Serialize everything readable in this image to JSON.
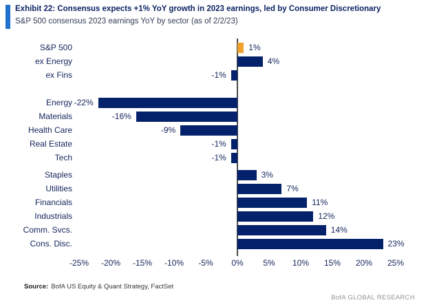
{
  "header": {
    "exhibit_title": "Exhibit 22: Consensus expects +1% YoY growth in 2023 earnings, led by Consumer Discretionary",
    "subtitle": "S&P 500 consensus 2023 earnings YoY by sector (as of 2/2/23)"
  },
  "colors": {
    "bar-navy": "#04216b",
    "bar-gold": "#efa32d",
    "accent-strip": "#2170cc",
    "title-navy": "#0d2464",
    "subtitle-slate": "#303c55",
    "label-navy": "#14245c",
    "axis-gray": "#4a4a4a",
    "source-dark": "#1a1a1a",
    "brand-gray": "#8f949b"
  },
  "chart_data": {
    "type": "bar",
    "orientation": "horizontal",
    "unit": "%",
    "title": "S&P 500 consensus 2023 earnings YoY by sector (as of 2/2/23)",
    "xlabel": "",
    "ylabel": "",
    "xlim": [
      -25,
      25
    ],
    "x_tick_step": 5,
    "x_ticks": [
      "-25%",
      "-20%",
      "-15%",
      "-10%",
      "-5%",
      "0%",
      "5%",
      "10%",
      "15%",
      "20%",
      "25%"
    ],
    "grid": false,
    "legend": false,
    "groups": [
      {
        "name": "aggregate",
        "rows": [
          {
            "label": "S&P 500",
            "value": 1,
            "value_label": "1%",
            "highlight": true
          },
          {
            "label": "ex Energy",
            "value": 4,
            "value_label": "4%",
            "highlight": false
          },
          {
            "label": "ex Fins",
            "value": -1,
            "value_label": "-1%",
            "highlight": false
          }
        ]
      },
      {
        "name": "negative-sectors",
        "rows": [
          {
            "label": "Energy",
            "value": -22,
            "value_label": "-22%",
            "highlight": false
          },
          {
            "label": "Materials",
            "value": -16,
            "value_label": "-16%",
            "highlight": false
          },
          {
            "label": "Health Care",
            "value": -9,
            "value_label": "-9%",
            "highlight": false
          },
          {
            "label": "Real Estate",
            "value": -1,
            "value_label": "-1%",
            "highlight": false
          },
          {
            "label": "Tech",
            "value": -1,
            "value_label": "-1%",
            "highlight": false
          }
        ]
      },
      {
        "name": "positive-sectors",
        "rows": [
          {
            "label": "Staples",
            "value": 3,
            "value_label": "3%",
            "highlight": false
          },
          {
            "label": "Utilities",
            "value": 7,
            "value_label": "7%",
            "highlight": false
          },
          {
            "label": "Financials",
            "value": 11,
            "value_label": "11%",
            "highlight": false
          },
          {
            "label": "Industrials",
            "value": 12,
            "value_label": "12%",
            "highlight": false
          },
          {
            "label": "Comm. Svcs.",
            "value": 14,
            "value_label": "14%",
            "highlight": false
          },
          {
            "label": "Cons. Disc.",
            "value": 23,
            "value_label": "23%",
            "highlight": false
          }
        ]
      }
    ]
  },
  "footer": {
    "source_label": "Source:",
    "source_text": "BofA US Equity & Quant Strategy, FactSet",
    "brand": "BofA GLOBAL RESEARCH"
  }
}
